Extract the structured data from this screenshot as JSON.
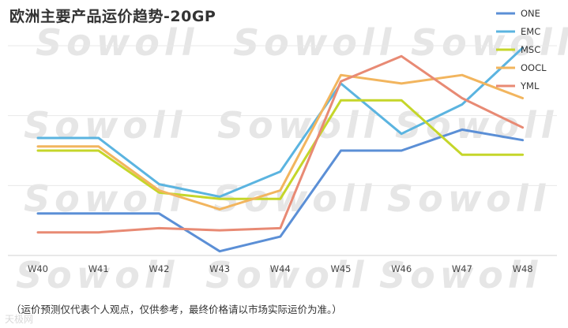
{
  "chart_data": {
    "type": "line",
    "title": "欧洲主要产品运价趋势-20GP",
    "categories": [
      "W40",
      "W41",
      "W42",
      "W43",
      "W44",
      "W45",
      "W46",
      "W47",
      "W48"
    ],
    "ylim": [
      0,
      100
    ],
    "grid": true,
    "legend": "top-right",
    "series": [
      {
        "name": "ONE",
        "color": "#5b8fd6",
        "values": [
          20,
          20,
          20,
          2,
          9,
          50,
          50,
          60,
          55
        ]
      },
      {
        "name": "EMC",
        "color": "#5bb4e0",
        "values": [
          56,
          56,
          34,
          28,
          40,
          82,
          58,
          72,
          99
        ]
      },
      {
        "name": "MSC",
        "color": "#c5d62a",
        "values": [
          50,
          50,
          30,
          27,
          27,
          74,
          74,
          48,
          48
        ]
      },
      {
        "name": "OOCL",
        "color": "#f2b55e",
        "values": [
          52,
          52,
          31,
          22,
          31,
          86,
          82,
          86,
          75
        ]
      },
      {
        "name": "YML",
        "color": "#e88a74",
        "values": [
          11,
          11,
          13,
          12,
          13,
          83,
          95,
          75,
          61
        ]
      }
    ]
  },
  "footnote": "（运价预测仅代表个人观点，仅供参考，最终价格请以市场实际运价为准。）",
  "watermark": "Sowoll",
  "corner_logo": "天极网",
  "colors": {
    "grid": "#e8e8e8",
    "axis": "#d0d0d0"
  }
}
